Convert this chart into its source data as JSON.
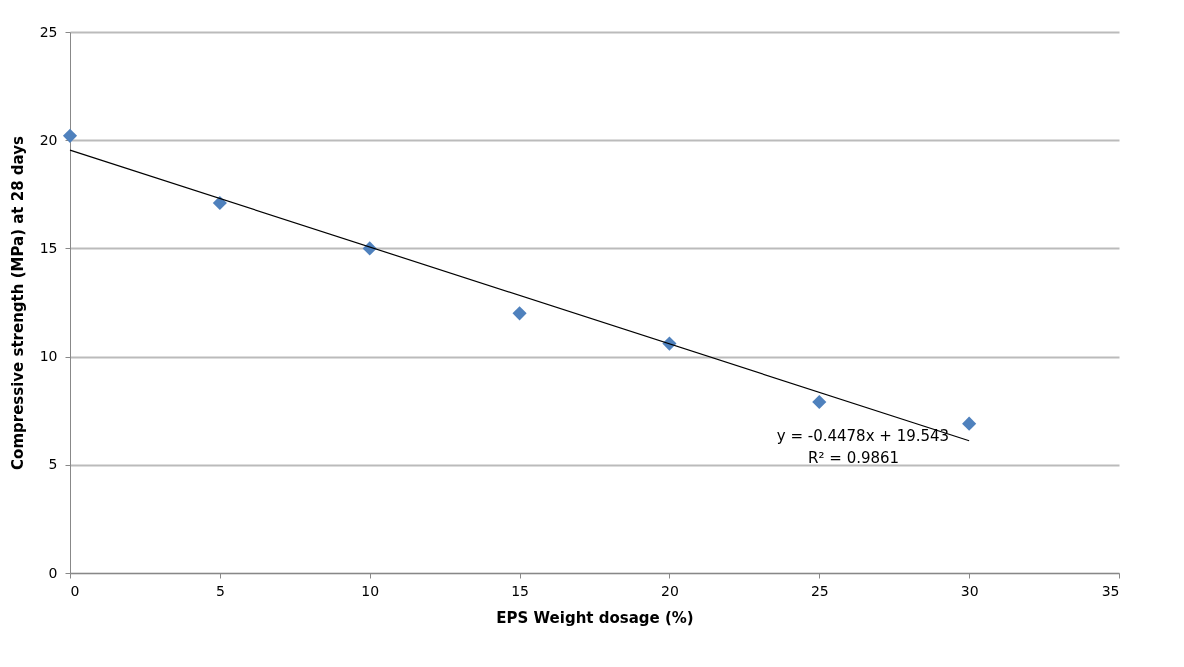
{
  "chart_data": {
    "type": "scatter",
    "xlabel": "EPS Weight dosage (%)",
    "ylabel": "Compressive strength (MPa) at 28 days",
    "x": [
      0,
      5,
      10,
      15,
      20,
      25,
      30
    ],
    "series": [
      {
        "color": "#4f81bd",
        "marker": "diamond",
        "values": [
          20.2,
          17.1,
          15.0,
          12.0,
          10.6,
          7.9,
          6.9
        ]
      },
      {
        "type": "line",
        "color": "#000000",
        "marker": "none",
        "x": [
          0,
          30
        ],
        "values": [
          19.543,
          6.109
        ]
      }
    ],
    "xlim": [
      0,
      35
    ],
    "xticks": [
      0,
      5,
      10,
      15,
      20,
      25,
      30,
      35
    ],
    "ylim": [
      0,
      25
    ],
    "yticks": [
      0,
      5,
      10,
      15,
      20,
      25
    ],
    "grid": "y",
    "legend": false,
    "annotations": [
      "y = -0.4478x + 19.543",
      "R² = 0.9861"
    ]
  }
}
